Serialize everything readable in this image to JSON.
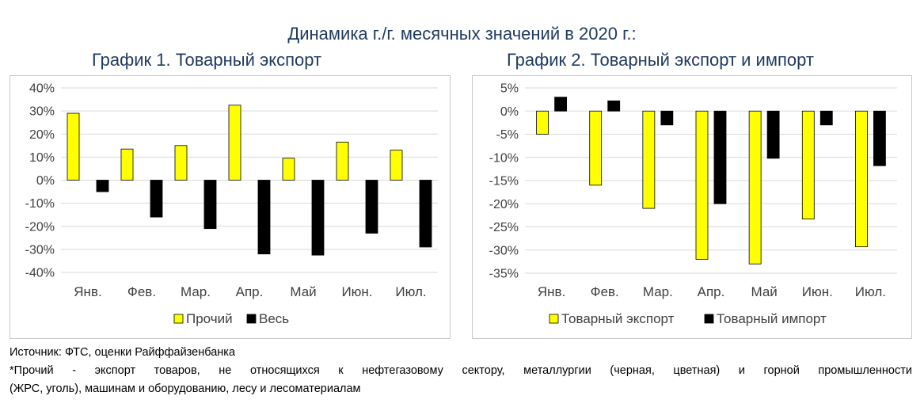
{
  "main_title": "Динамика г./г. месячных значений в 2020 г.:",
  "chart_data": [
    {
      "type": "bar",
      "title": "График 1. Товарный экспорт",
      "categories": [
        "Янв.",
        "Фев.",
        "Мар.",
        "Апр.",
        "Май",
        "Июн.",
        "Июл."
      ],
      "series": [
        {
          "name": "Прочий",
          "color": "#ffff00",
          "values": [
            29,
            13.5,
            15,
            32.5,
            9.5,
            16.5,
            13
          ]
        },
        {
          "name": "Весь",
          "color": "#000000",
          "values": [
            -5,
            -16,
            -21,
            -32,
            -32.5,
            -23,
            -29
          ]
        }
      ],
      "ylim": [
        -40,
        40
      ],
      "yticks": [
        40,
        30,
        20,
        10,
        0,
        -10,
        -20,
        -30,
        -40
      ],
      "ytick_labels": [
        "40%",
        "30%",
        "20%",
        "10%",
        "0%",
        "-10%",
        "-20%",
        "-30%",
        "-40%"
      ],
      "grid": true,
      "legend": "bottom"
    },
    {
      "type": "bar",
      "title": "График 2. Товарный экспорт и импорт",
      "categories": [
        "Янв.",
        "Фев.",
        "Мар.",
        "Апр.",
        "Май",
        "Июн.",
        "Июл."
      ],
      "series": [
        {
          "name": "Товарный экспорт",
          "color": "#ffff00",
          "values": [
            -5,
            -16,
            -21,
            -32,
            -33,
            -23.3,
            -29.3
          ]
        },
        {
          "name": "Товарный импорт",
          "color": "#000000",
          "values": [
            3,
            2.2,
            -3,
            -20,
            -10.2,
            -3,
            -11.8
          ]
        }
      ],
      "ylim": [
        -35,
        5
      ],
      "yticks": [
        5,
        0,
        -5,
        -10,
        -15,
        -20,
        -25,
        -30,
        -35
      ],
      "ytick_labels": [
        "5%",
        "0%",
        "-5%",
        "-10%",
        "-15%",
        "-20%",
        "-25%",
        "-30%",
        "-35%"
      ],
      "grid": true,
      "legend": "bottom"
    }
  ],
  "notes": {
    "source": "Источник: ФТС, оценки Райффайзенбанка",
    "footnote_line1": "*Прочий - экспорт товаров, не относящихся к нефтегазовому сектору, металлургии (черная, цветная) и горной промышленности",
    "footnote_line2": "(ЖРС, уголь), машинам и оборудованию, лесу и лесоматериалам"
  }
}
